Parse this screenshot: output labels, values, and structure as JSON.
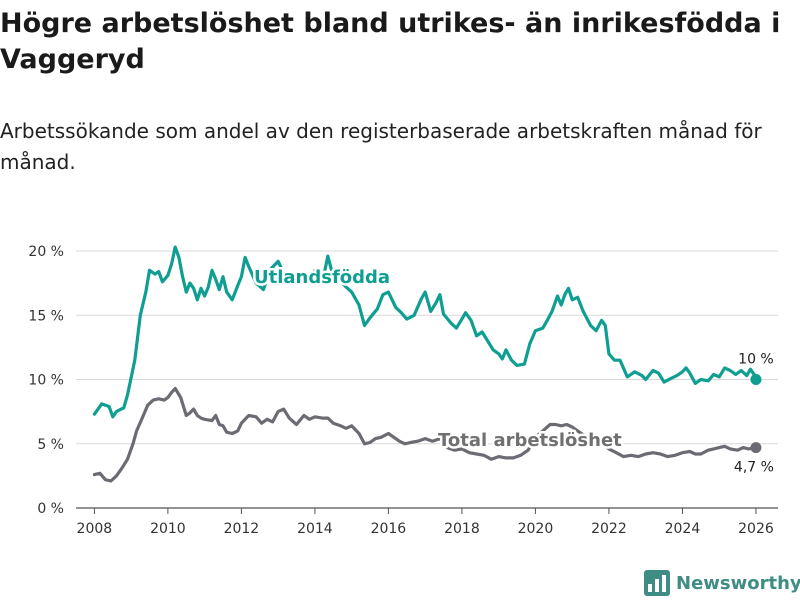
{
  "title": "Högre arbetslöshet bland utrikes- än inrikesfödda i Vaggeryd",
  "subtitle": "Arbetssökande som andel av den registerbaserade arbetskraften månad för månad.",
  "brand": "Newsworthy",
  "colors": {
    "teal": "#0f9e92",
    "gray": "#6b6b73",
    "grid": "#d9d9d9",
    "brand": "#3e8c84"
  },
  "chart_data": {
    "type": "line",
    "title": "Högre arbetslöshet bland utrikes- än inrikesfödda i Vaggeryd",
    "subtitle": "Arbetssökande som andel av den registerbaserade arbetskraften månad för månad.",
    "xlabel": "",
    "ylabel": "",
    "xlim": [
      2007.5,
      2026.6
    ],
    "ylim": [
      0,
      20
    ],
    "grid": true,
    "x_ticks": [
      2008,
      2010,
      2012,
      2014,
      2016,
      2018,
      2020,
      2022,
      2024,
      2026
    ],
    "x_tick_labels": [
      "2008",
      "2010",
      "2012",
      "2014",
      "2016",
      "2018",
      "2020",
      "2022",
      "2024",
      "2026"
    ],
    "y_ticks": [
      0,
      5,
      10,
      15,
      20
    ],
    "y_tick_labels": [
      "0 %",
      "5 %",
      "10 %",
      "15 %",
      "20 %"
    ],
    "series": [
      {
        "name": "Utlandsfödda",
        "color": "#0f9e92",
        "end_label": "10 %",
        "points": [
          [
            2008.0,
            7.3
          ],
          [
            2008.2,
            8.1
          ],
          [
            2008.4,
            7.9
          ],
          [
            2008.5,
            7.1
          ],
          [
            2008.6,
            7.5
          ],
          [
            2008.8,
            7.8
          ],
          [
            2008.9,
            8.8
          ],
          [
            2009.1,
            11.5
          ],
          [
            2009.25,
            15.0
          ],
          [
            2009.4,
            16.8
          ],
          [
            2009.5,
            18.5
          ],
          [
            2009.65,
            18.2
          ],
          [
            2009.75,
            18.4
          ],
          [
            2009.85,
            17.6
          ],
          [
            2010.0,
            18.1
          ],
          [
            2010.1,
            19.0
          ],
          [
            2010.2,
            20.3
          ],
          [
            2010.3,
            19.5
          ],
          [
            2010.4,
            18.0
          ],
          [
            2010.5,
            16.8
          ],
          [
            2010.6,
            17.5
          ],
          [
            2010.7,
            17.1
          ],
          [
            2010.8,
            16.2
          ],
          [
            2010.9,
            17.1
          ],
          [
            2011.0,
            16.5
          ],
          [
            2011.1,
            17.2
          ],
          [
            2011.2,
            18.5
          ],
          [
            2011.3,
            17.8
          ],
          [
            2011.4,
            17.0
          ],
          [
            2011.5,
            18.0
          ],
          [
            2011.6,
            16.8
          ],
          [
            2011.75,
            16.2
          ],
          [
            2011.9,
            17.3
          ],
          [
            2012.0,
            18.0
          ],
          [
            2012.1,
            19.5
          ],
          [
            2012.2,
            18.8
          ],
          [
            2012.4,
            17.5
          ],
          [
            2012.6,
            17.0
          ],
          [
            2012.8,
            18.6
          ],
          [
            2013.0,
            19.2
          ],
          [
            2013.2,
            18.0
          ],
          [
            2013.4,
            17.8
          ],
          [
            2013.6,
            18.3
          ],
          [
            2013.8,
            17.7
          ],
          [
            2014.0,
            18.5
          ],
          [
            2014.2,
            17.5
          ],
          [
            2014.35,
            19.6
          ],
          [
            2014.5,
            18.0
          ],
          [
            2014.7,
            17.6
          ],
          [
            2014.85,
            17.2
          ],
          [
            2015.0,
            16.8
          ],
          [
            2015.2,
            15.8
          ],
          [
            2015.35,
            14.2
          ],
          [
            2015.5,
            14.8
          ],
          [
            2015.7,
            15.5
          ],
          [
            2015.85,
            16.6
          ],
          [
            2016.0,
            16.8
          ],
          [
            2016.2,
            15.6
          ],
          [
            2016.35,
            15.2
          ],
          [
            2016.5,
            14.7
          ],
          [
            2016.7,
            15.0
          ],
          [
            2016.9,
            16.3
          ],
          [
            2017.0,
            16.8
          ],
          [
            2017.15,
            15.3
          ],
          [
            2017.3,
            16.0
          ],
          [
            2017.4,
            16.6
          ],
          [
            2017.5,
            15.1
          ],
          [
            2017.7,
            14.4
          ],
          [
            2017.85,
            14.0
          ],
          [
            2018.0,
            14.7
          ],
          [
            2018.1,
            15.2
          ],
          [
            2018.25,
            14.6
          ],
          [
            2018.4,
            13.4
          ],
          [
            2018.55,
            13.7
          ],
          [
            2018.7,
            13.0
          ],
          [
            2018.85,
            12.3
          ],
          [
            2019.0,
            12.0
          ],
          [
            2019.1,
            11.6
          ],
          [
            2019.2,
            12.3
          ],
          [
            2019.35,
            11.5
          ],
          [
            2019.5,
            11.1
          ],
          [
            2019.7,
            11.2
          ],
          [
            2019.85,
            12.8
          ],
          [
            2020.0,
            13.8
          ],
          [
            2020.2,
            14.0
          ],
          [
            2020.3,
            14.5
          ],
          [
            2020.45,
            15.3
          ],
          [
            2020.6,
            16.5
          ],
          [
            2020.7,
            15.8
          ],
          [
            2020.8,
            16.6
          ],
          [
            2020.9,
            17.1
          ],
          [
            2021.0,
            16.2
          ],
          [
            2021.15,
            16.4
          ],
          [
            2021.3,
            15.3
          ],
          [
            2021.5,
            14.2
          ],
          [
            2021.65,
            13.8
          ],
          [
            2021.8,
            14.6
          ],
          [
            2021.9,
            14.2
          ],
          [
            2022.0,
            12.0
          ],
          [
            2022.15,
            11.5
          ],
          [
            2022.3,
            11.5
          ],
          [
            2022.5,
            10.2
          ],
          [
            2022.7,
            10.6
          ],
          [
            2022.9,
            10.3
          ],
          [
            2023.0,
            10.0
          ],
          [
            2023.2,
            10.7
          ],
          [
            2023.35,
            10.5
          ],
          [
            2023.5,
            9.8
          ],
          [
            2023.7,
            10.1
          ],
          [
            2023.85,
            10.3
          ],
          [
            2024.0,
            10.6
          ],
          [
            2024.1,
            10.9
          ],
          [
            2024.2,
            10.5
          ],
          [
            2024.35,
            9.7
          ],
          [
            2024.5,
            10.0
          ],
          [
            2024.7,
            9.9
          ],
          [
            2024.85,
            10.4
          ],
          [
            2025.0,
            10.2
          ],
          [
            2025.15,
            10.9
          ],
          [
            2025.3,
            10.7
          ],
          [
            2025.45,
            10.4
          ],
          [
            2025.6,
            10.7
          ],
          [
            2025.75,
            10.3
          ],
          [
            2025.85,
            10.8
          ],
          [
            2025.95,
            10.4
          ],
          [
            2026.0,
            10.0
          ]
        ]
      },
      {
        "name": "Total arbetslöshet",
        "color": "#6b6b73",
        "end_label": "4,7 %",
        "points": [
          [
            2008.0,
            2.6
          ],
          [
            2008.15,
            2.7
          ],
          [
            2008.3,
            2.2
          ],
          [
            2008.45,
            2.1
          ],
          [
            2008.6,
            2.5
          ],
          [
            2008.75,
            3.1
          ],
          [
            2008.9,
            3.8
          ],
          [
            2009.05,
            5.0
          ],
          [
            2009.15,
            6.0
          ],
          [
            2009.3,
            7.0
          ],
          [
            2009.45,
            8.0
          ],
          [
            2009.6,
            8.4
          ],
          [
            2009.75,
            8.5
          ],
          [
            2009.9,
            8.4
          ],
          [
            2010.0,
            8.6
          ],
          [
            2010.1,
            9.0
          ],
          [
            2010.2,
            9.3
          ],
          [
            2010.35,
            8.6
          ],
          [
            2010.5,
            7.2
          ],
          [
            2010.6,
            7.4
          ],
          [
            2010.7,
            7.7
          ],
          [
            2010.8,
            7.2
          ],
          [
            2010.9,
            7.0
          ],
          [
            2011.0,
            6.9
          ],
          [
            2011.2,
            6.8
          ],
          [
            2011.3,
            7.2
          ],
          [
            2011.4,
            6.5
          ],
          [
            2011.5,
            6.4
          ],
          [
            2011.6,
            5.9
          ],
          [
            2011.75,
            5.8
          ],
          [
            2011.9,
            6.0
          ],
          [
            2012.0,
            6.6
          ],
          [
            2012.2,
            7.2
          ],
          [
            2012.4,
            7.1
          ],
          [
            2012.55,
            6.6
          ],
          [
            2012.7,
            6.9
          ],
          [
            2012.85,
            6.7
          ],
          [
            2013.0,
            7.5
          ],
          [
            2013.15,
            7.7
          ],
          [
            2013.3,
            7.0
          ],
          [
            2013.5,
            6.5
          ],
          [
            2013.7,
            7.2
          ],
          [
            2013.85,
            6.9
          ],
          [
            2014.0,
            7.1
          ],
          [
            2014.2,
            7.0
          ],
          [
            2014.35,
            7.0
          ],
          [
            2014.5,
            6.6
          ],
          [
            2014.7,
            6.4
          ],
          [
            2014.85,
            6.2
          ],
          [
            2015.0,
            6.4
          ],
          [
            2015.2,
            5.8
          ],
          [
            2015.35,
            5.0
          ],
          [
            2015.5,
            5.1
          ],
          [
            2015.65,
            5.4
          ],
          [
            2015.8,
            5.5
          ],
          [
            2016.0,
            5.8
          ],
          [
            2016.15,
            5.5
          ],
          [
            2016.3,
            5.2
          ],
          [
            2016.45,
            5.0
          ],
          [
            2016.6,
            5.1
          ],
          [
            2016.8,
            5.2
          ],
          [
            2017.0,
            5.4
          ],
          [
            2017.2,
            5.2
          ],
          [
            2017.4,
            5.4
          ],
          [
            2017.6,
            4.7
          ],
          [
            2017.8,
            4.5
          ],
          [
            2018.0,
            4.6
          ],
          [
            2018.2,
            4.3
          ],
          [
            2018.4,
            4.2
          ],
          [
            2018.6,
            4.1
          ],
          [
            2018.8,
            3.8
          ],
          [
            2019.0,
            4.0
          ],
          [
            2019.2,
            3.9
          ],
          [
            2019.4,
            3.9
          ],
          [
            2019.6,
            4.1
          ],
          [
            2019.8,
            4.5
          ],
          [
            2020.0,
            5.5
          ],
          [
            2020.2,
            6.0
          ],
          [
            2020.4,
            6.5
          ],
          [
            2020.55,
            6.5
          ],
          [
            2020.7,
            6.4
          ],
          [
            2020.85,
            6.5
          ],
          [
            2021.0,
            6.3
          ],
          [
            2021.2,
            5.9
          ],
          [
            2021.4,
            5.5
          ],
          [
            2021.6,
            5.3
          ],
          [
            2021.8,
            5.1
          ],
          [
            2022.0,
            4.6
          ],
          [
            2022.2,
            4.3
          ],
          [
            2022.4,
            4.0
          ],
          [
            2022.6,
            4.1
          ],
          [
            2022.8,
            4.0
          ],
          [
            2023.0,
            4.2
          ],
          [
            2023.2,
            4.3
          ],
          [
            2023.4,
            4.2
          ],
          [
            2023.6,
            4.0
          ],
          [
            2023.8,
            4.1
          ],
          [
            2024.0,
            4.3
          ],
          [
            2024.2,
            4.4
          ],
          [
            2024.35,
            4.2
          ],
          [
            2024.5,
            4.2
          ],
          [
            2024.7,
            4.5
          ],
          [
            2024.85,
            4.6
          ],
          [
            2025.0,
            4.7
          ],
          [
            2025.15,
            4.8
          ],
          [
            2025.3,
            4.6
          ],
          [
            2025.5,
            4.5
          ],
          [
            2025.65,
            4.7
          ],
          [
            2025.8,
            4.6
          ],
          [
            2026.0,
            4.7
          ]
        ]
      }
    ]
  }
}
